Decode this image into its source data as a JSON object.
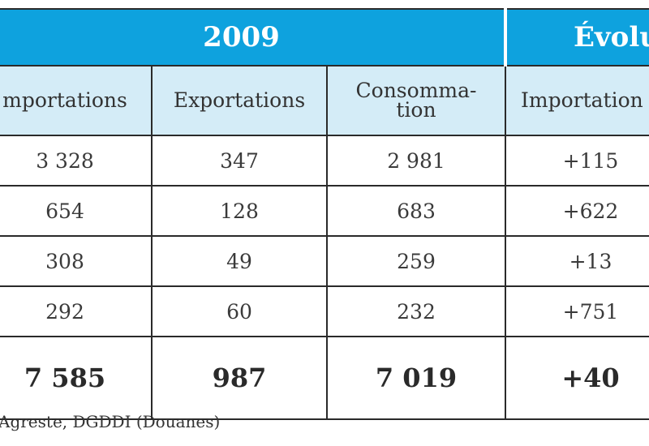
{
  "table": {
    "year": "2009",
    "evolution_label": "Évolu",
    "headers": [
      "mportations",
      "Exportations",
      "Consomma-\ntion",
      "Importation"
    ],
    "rows": [
      [
        "3 328",
        "347",
        "2 981",
        "+115"
      ],
      [
        "654",
        "128",
        "683",
        "+622"
      ],
      [
        "308",
        "49",
        "259",
        "+13"
      ],
      [
        "292",
        "60",
        "232",
        "+751"
      ]
    ],
    "total": [
      "7 585",
      "987",
      "7 019",
      "+40"
    ]
  },
  "source": "Agreste, DGDDI (Douanes)",
  "colors": {
    "header_blue": "#0ea2de",
    "subheader_blue": "#d4ecf7"
  }
}
